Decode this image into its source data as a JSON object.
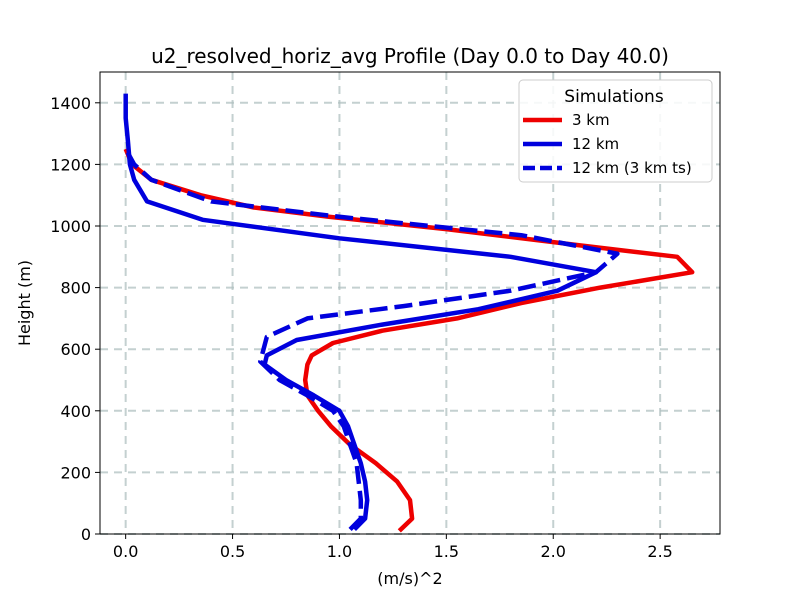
{
  "chart_data": {
    "type": "line",
    "title": "u2_resolved_horiz_avg Profile (Day 0.0 to Day 40.0)",
    "xlabel": "(m/s)^2",
    "ylabel": "Height (m)",
    "xlim": [
      -0.12,
      2.78
    ],
    "ylim": [
      0,
      1500
    ],
    "xticks": [
      0.0,
      0.5,
      1.0,
      1.5,
      2.0,
      2.5
    ],
    "xtick_labels": [
      "0.0",
      "0.5",
      "1.0",
      "1.5",
      "2.0",
      "2.5"
    ],
    "yticks": [
      0,
      200,
      400,
      600,
      800,
      1000,
      1200,
      1400
    ],
    "ytick_labels": [
      "0",
      "200",
      "400",
      "600",
      "800",
      "1000",
      "1200",
      "1400"
    ],
    "grid": true,
    "legend": {
      "title": "Simulations",
      "placement": "top-right"
    },
    "series": [
      {
        "name": "3 km",
        "color": "#ee0000",
        "style": "solid",
        "points": [
          [
            1.28,
            10
          ],
          [
            1.34,
            50
          ],
          [
            1.33,
            110
          ],
          [
            1.27,
            170
          ],
          [
            1.17,
            230
          ],
          [
            1.05,
            290
          ],
          [
            0.96,
            350
          ],
          [
            0.9,
            400
          ],
          [
            0.85,
            450
          ],
          [
            0.84,
            500
          ],
          [
            0.85,
            550
          ],
          [
            0.87,
            580
          ],
          [
            0.97,
            620
          ],
          [
            1.2,
            660
          ],
          [
            1.55,
            700
          ],
          [
            1.85,
            750
          ],
          [
            2.22,
            800
          ],
          [
            2.65,
            850
          ],
          [
            2.58,
            900
          ],
          [
            2.15,
            935
          ],
          [
            1.5,
            990
          ],
          [
            0.95,
            1030
          ],
          [
            0.6,
            1060
          ],
          [
            0.35,
            1100
          ],
          [
            0.12,
            1150
          ],
          [
            0.03,
            1200
          ],
          [
            0.0,
            1250
          ]
        ]
      },
      {
        "name": "12 km",
        "color": "#0000dd",
        "style": "solid",
        "points": [
          [
            1.07,
            15
          ],
          [
            1.12,
            50
          ],
          [
            1.13,
            110
          ],
          [
            1.12,
            170
          ],
          [
            1.1,
            230
          ],
          [
            1.07,
            290
          ],
          [
            1.04,
            350
          ],
          [
            1.0,
            400
          ],
          [
            0.88,
            450
          ],
          [
            0.75,
            500
          ],
          [
            0.65,
            550
          ],
          [
            0.66,
            580
          ],
          [
            0.8,
            630
          ],
          [
            1.2,
            680
          ],
          [
            1.65,
            730
          ],
          [
            2.02,
            790
          ],
          [
            2.2,
            850
          ],
          [
            1.8,
            900
          ],
          [
            1.0,
            960
          ],
          [
            0.36,
            1020
          ],
          [
            0.1,
            1080
          ],
          [
            0.04,
            1150
          ],
          [
            0.02,
            1200
          ],
          [
            0.01,
            1280
          ],
          [
            0.0,
            1350
          ],
          [
            0.0,
            1430
          ]
        ]
      },
      {
        "name": "12 km (3 km ts)",
        "color": "#0000dd",
        "style": "dashed",
        "points": [
          [
            1.05,
            15
          ],
          [
            1.1,
            50
          ],
          [
            1.1,
            110
          ],
          [
            1.09,
            170
          ],
          [
            1.08,
            230
          ],
          [
            1.05,
            290
          ],
          [
            1.02,
            350
          ],
          [
            0.97,
            400
          ],
          [
            0.85,
            450
          ],
          [
            0.72,
            500
          ],
          [
            0.63,
            560
          ],
          [
            0.66,
            640
          ],
          [
            0.85,
            700
          ],
          [
            1.3,
            740
          ],
          [
            1.8,
            790
          ],
          [
            2.2,
            850
          ],
          [
            2.3,
            910
          ],
          [
            1.85,
            970
          ],
          [
            1.0,
            1030
          ],
          [
            0.4,
            1080
          ],
          [
            0.12,
            1150
          ],
          [
            0.04,
            1200
          ],
          [
            0.0,
            1250
          ]
        ]
      }
    ]
  }
}
